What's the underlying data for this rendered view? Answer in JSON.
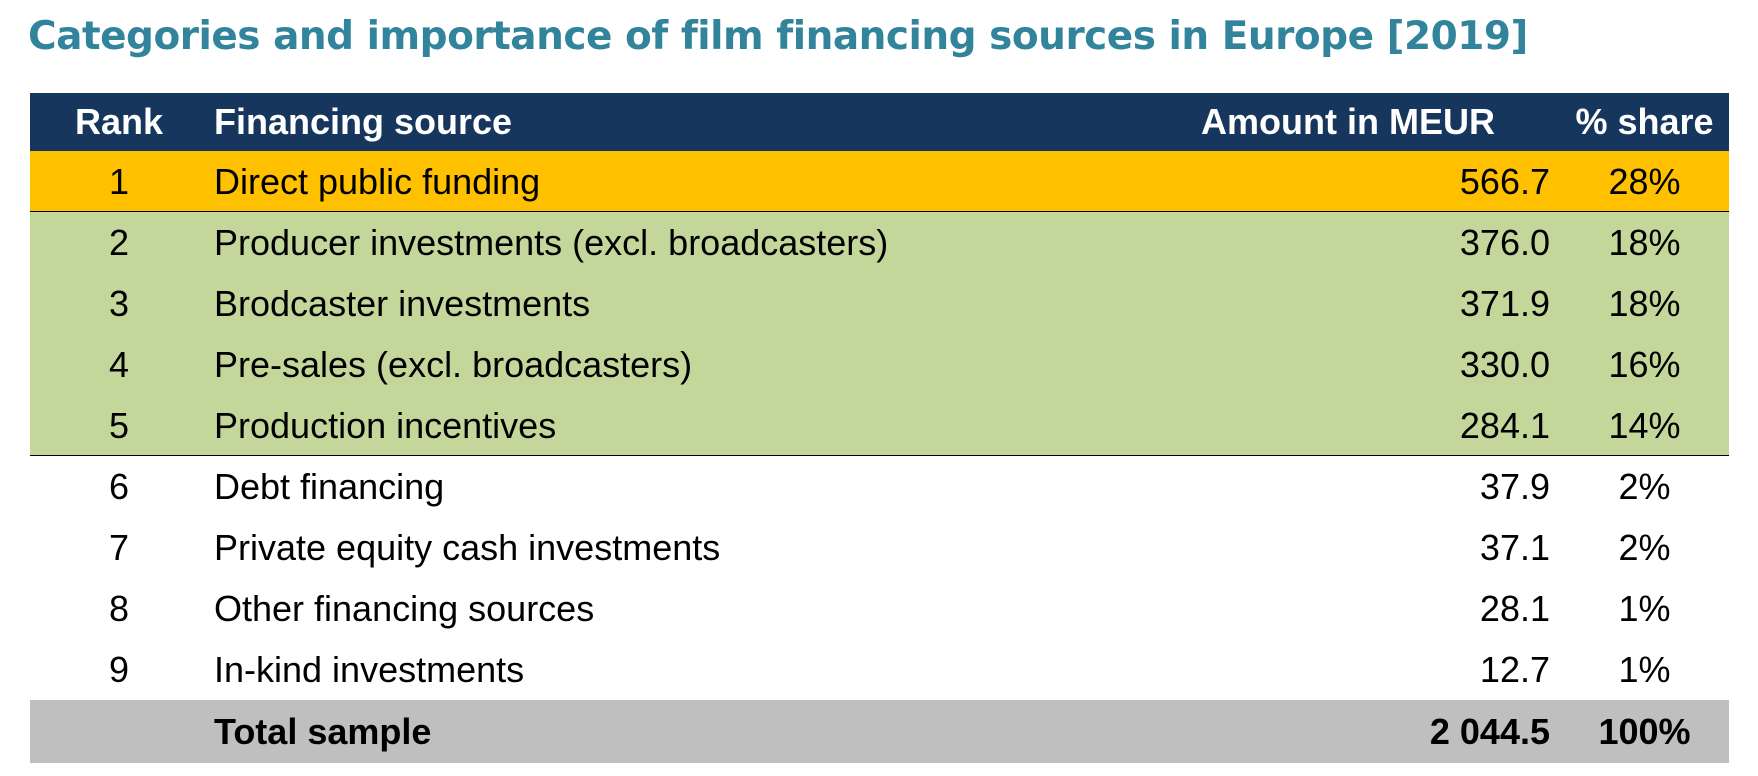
{
  "title": "Categories and importance of film financing sources in Europe [2019]",
  "colors": {
    "title": "#31849b",
    "header_bg": "#17365d",
    "highlight_top": "#ffc000",
    "highlight_group": "#c4d79b",
    "plain": "#ffffff",
    "total_bg": "#bfbfbf"
  },
  "chart_data": {
    "type": "table",
    "columns": [
      "Rank",
      "Financing source",
      "Amount in MEUR",
      "% share"
    ],
    "rows": [
      {
        "rank": "1",
        "source": "Direct public funding",
        "amount": "566.7",
        "share": "28%",
        "group": "top"
      },
      {
        "rank": "2",
        "source": "Producer investments (excl. broadcasters)",
        "amount": "376.0",
        "share": "18%",
        "group": "major"
      },
      {
        "rank": "3",
        "source": "Brodcaster investments",
        "amount": "371.9",
        "share": "18%",
        "group": "major"
      },
      {
        "rank": "4",
        "source": "Pre-sales (excl. broadcasters)",
        "amount": "330.0",
        "share": "16%",
        "group": "major"
      },
      {
        "rank": "5",
        "source": "Production incentives",
        "amount": "284.1",
        "share": "14%",
        "group": "major"
      },
      {
        "rank": "6",
        "source": "Debt financing",
        "amount": "37.9",
        "share": "2%",
        "group": "minor"
      },
      {
        "rank": "7",
        "source": "Private equity cash investments",
        "amount": "37.1",
        "share": "2%",
        "group": "minor"
      },
      {
        "rank": "8",
        "source": "Other financing sources",
        "amount": "28.1",
        "share": "1%",
        "group": "minor"
      },
      {
        "rank": "9",
        "source": "In-kind investments",
        "amount": "12.7",
        "share": "1%",
        "group": "minor"
      }
    ],
    "total": {
      "rank": "",
      "source": "Total sample",
      "amount": "2 044.5",
      "share": "100%"
    }
  }
}
